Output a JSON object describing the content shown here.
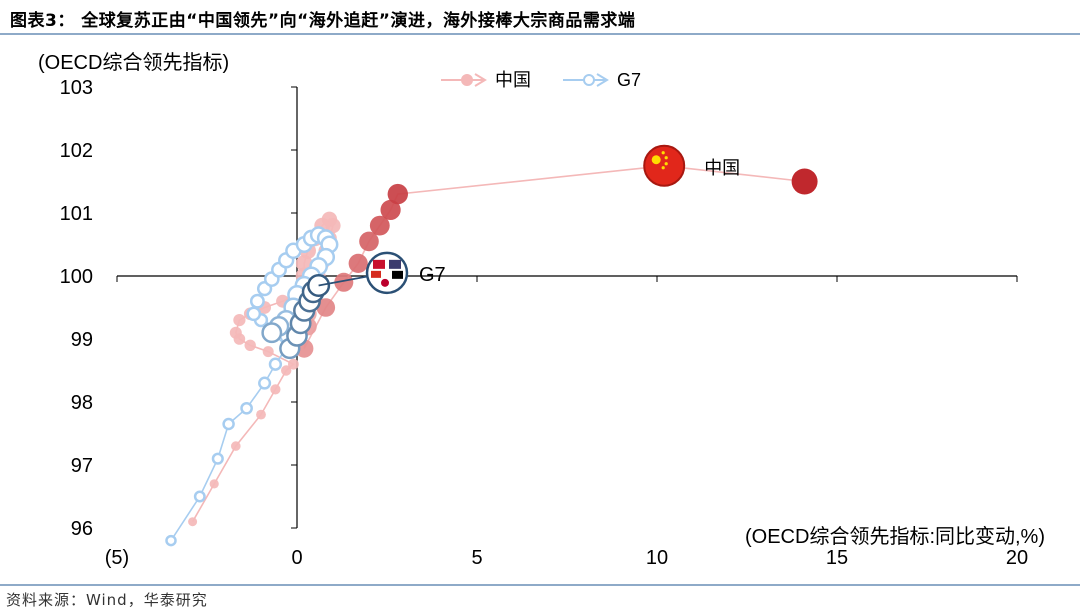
{
  "header": {
    "title": "图表3：  全球复苏正由“中国领先”向“海外追赶”演进，海外接棒大宗商品需求端"
  },
  "footer": {
    "source": "资料来源：Wind，华泰研究"
  },
  "colors": {
    "china_dark": "#c0282d",
    "china_light": "#f4b8b8",
    "g7_dark": "#2b5075",
    "g7_light": "#a7cdf0",
    "rule": "#8eaac8",
    "flag_red": "#e1271b",
    "flag_star": "#ffde00"
  },
  "chart_data": {
    "type": "scatter",
    "title": "",
    "ylabel": "(OECD综合领先指标)",
    "xlabel": "(OECD综合领先指标:同比变动,%)",
    "xlim": [
      -5,
      20
    ],
    "ylim": [
      96,
      103
    ],
    "x_ticks": [
      "(5)",
      "0",
      "5",
      "10",
      "15",
      "20"
    ],
    "y_ticks": [
      "96",
      "97",
      "98",
      "99",
      "100",
      "101",
      "102",
      "103"
    ],
    "legend": {
      "placement": "top-center",
      "entries": [
        "中国",
        "G7"
      ]
    },
    "annotations": {
      "china": "中国",
      "g7": "G7"
    },
    "series": [
      {
        "name": "中国",
        "color": "#c0282d",
        "points": [
          [
            -2.9,
            96.1
          ],
          [
            -2.3,
            96.7
          ],
          [
            -1.7,
            97.3
          ],
          [
            -1.0,
            97.8
          ],
          [
            -0.6,
            98.2
          ],
          [
            -0.3,
            98.5
          ],
          [
            -0.1,
            98.6
          ],
          [
            -0.8,
            98.8
          ],
          [
            -1.3,
            98.9
          ],
          [
            -1.6,
            99.0
          ],
          [
            -1.7,
            99.1
          ],
          [
            -1.6,
            99.3
          ],
          [
            -1.3,
            99.4
          ],
          [
            -0.9,
            99.5
          ],
          [
            -0.4,
            99.6
          ],
          [
            0.0,
            99.7
          ],
          [
            0.4,
            99.8
          ],
          [
            0.6,
            100.0
          ],
          [
            0.7,
            100.2
          ],
          [
            0.8,
            100.4
          ],
          [
            0.9,
            100.6
          ],
          [
            1.0,
            100.8
          ],
          [
            0.9,
            100.9
          ],
          [
            0.7,
            100.8
          ],
          [
            0.5,
            100.6
          ],
          [
            0.3,
            100.4
          ],
          [
            0.2,
            100.2
          ],
          [
            0.2,
            100.0
          ],
          [
            0.2,
            99.8
          ],
          [
            0.2,
            99.6
          ],
          [
            0.3,
            99.4
          ],
          [
            0.3,
            99.2
          ],
          [
            0.2,
            98.85
          ],
          [
            0.8,
            99.5
          ],
          [
            1.3,
            99.9
          ],
          [
            1.7,
            100.2
          ],
          [
            2.0,
            100.55
          ],
          [
            2.3,
            100.8
          ],
          [
            2.6,
            101.05
          ],
          [
            2.8,
            101.3
          ],
          [
            10.2,
            101.75
          ],
          [
            14.1,
            101.5
          ]
        ]
      },
      {
        "name": "G7",
        "color": "#2b5075",
        "points": [
          [
            -3.5,
            95.8
          ],
          [
            -2.7,
            96.5
          ],
          [
            -2.2,
            97.1
          ],
          [
            -1.9,
            97.65
          ],
          [
            -1.4,
            97.9
          ],
          [
            -0.9,
            98.3
          ],
          [
            -0.6,
            98.6
          ],
          [
            -0.3,
            98.85
          ],
          [
            -0.6,
            99.2
          ],
          [
            -1.0,
            99.3
          ],
          [
            -1.2,
            99.4
          ],
          [
            -1.1,
            99.6
          ],
          [
            -0.9,
            99.8
          ],
          [
            -0.7,
            99.95
          ],
          [
            -0.5,
            100.1
          ],
          [
            -0.3,
            100.25
          ],
          [
            -0.1,
            100.4
          ],
          [
            0.2,
            100.5
          ],
          [
            0.4,
            100.6
          ],
          [
            0.6,
            100.65
          ],
          [
            0.8,
            100.6
          ],
          [
            0.9,
            100.5
          ],
          [
            0.8,
            100.3
          ],
          [
            0.6,
            100.15
          ],
          [
            0.4,
            100.0
          ],
          [
            0.2,
            99.85
          ],
          [
            0.0,
            99.7
          ],
          [
            -0.1,
            99.5
          ],
          [
            -0.3,
            99.3
          ],
          [
            -0.5,
            99.2
          ],
          [
            -0.7,
            99.1
          ],
          [
            -0.2,
            98.85
          ],
          [
            0.0,
            99.05
          ],
          [
            0.1,
            99.25
          ],
          [
            0.2,
            99.45
          ],
          [
            0.35,
            99.6
          ],
          [
            0.45,
            99.75
          ],
          [
            0.6,
            99.85
          ],
          [
            2.5,
            100.05
          ]
        ]
      }
    ]
  }
}
